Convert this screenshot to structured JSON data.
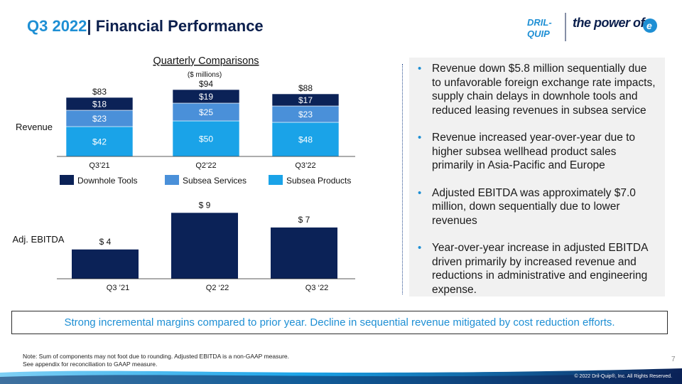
{
  "slide": {
    "title_period": "Q3 2022",
    "title_sep": "|",
    "title_text": "Financial Performance",
    "logo_text": "the power of",
    "logo_mark": "DRIL-QUIP",
    "page_number": "7",
    "copyright": "© 2022 Dril-Quip®, Inc. All Rights Reserved."
  },
  "bullets": [
    "Revenue down $5.8 million sequentially due to unfavorable foreign exchange rate impacts, supply chain delays in downhole tools and reduced leasing revenues in subsea service",
    "Revenue increased year-over-year due to higher subsea wellhead product sales primarily in Asia-Pacific and Europe",
    "Adjusted EBITDA was approximately $7.0 million, down sequentially due to lower revenues",
    "Year-over-year increase in adjusted EBITDA driven primarily by increased revenue and reductions in administrative and engineering expense."
  ],
  "banner": "Strong incremental margins compared to prior year.  Decline in sequential revenue mitigated by cost reduction efforts.",
  "footnote": [
    "Note: Sum of components may not foot due to rounding. Adjusted EBITDA is a non-GAAP measure.",
    "See appendix for reconciliation to GAAP measure."
  ],
  "colors": {
    "downhole": "#0b2257",
    "services": "#4a90d9",
    "products": "#1aa3e8",
    "ebitda": "#0b2257",
    "accent": "#1e8fd4"
  },
  "chart_data": [
    {
      "type": "bar",
      "stacked": true,
      "title": "Quarterly Comparisons",
      "subtitle": "($ millions)",
      "ylabel": "Revenue",
      "categories": [
        "Q3’21",
        "Q2’22",
        "Q3’22"
      ],
      "totals": [
        "$83",
        "$94",
        "$88"
      ],
      "series": [
        {
          "name": "Subsea Products",
          "values": [
            42,
            50,
            48
          ],
          "labels": [
            "$42",
            "$50",
            "$48"
          ]
        },
        {
          "name": "Subsea Services",
          "values": [
            23,
            25,
            23
          ],
          "labels": [
            "$23",
            "$25",
            "$23"
          ]
        },
        {
          "name": "Downhole Tools",
          "values": [
            18,
            19,
            17
          ],
          "labels": [
            "$18",
            "$19",
            "$17"
          ]
        }
      ],
      "legend": [
        "Downhole Tools",
        "Subsea Services",
        "Subsea Products"
      ],
      "legend_position": "bottom",
      "ylim": [
        0,
        100
      ]
    },
    {
      "type": "bar",
      "ylabel": "Adj. EBITDA",
      "categories": [
        "Q3 ’21",
        "Q2 ‘22",
        "Q3 ‘22"
      ],
      "values": [
        4,
        9,
        7
      ],
      "labels": [
        "$ 4",
        "$ 9",
        "$ 7"
      ],
      "ylim": [
        0,
        9
      ]
    }
  ]
}
